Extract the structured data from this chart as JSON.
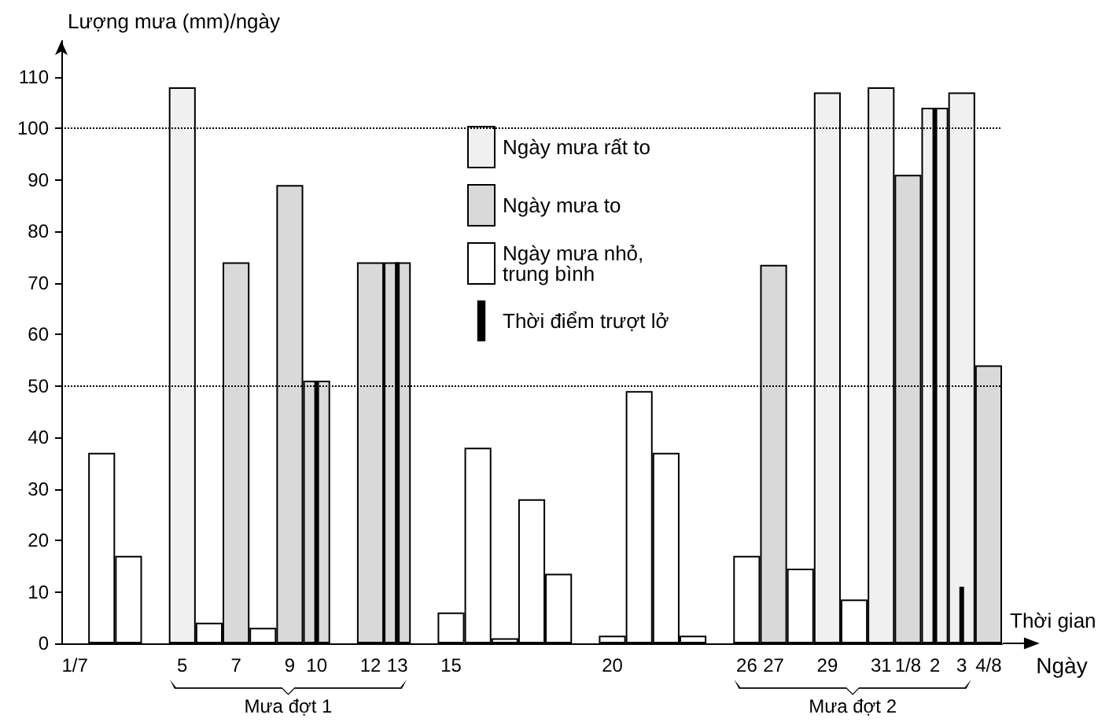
{
  "chart_data": {
    "type": "bar",
    "ylabel": "Lượng mưa (mm)/ngày",
    "xlabel": "Thời gian",
    "categories": [
      "1/7",
      null,
      null,
      null,
      "5",
      null,
      "7",
      null,
      "9",
      "10",
      null,
      "12",
      "13",
      null,
      "15",
      null,
      null,
      null,
      null,
      null,
      "20",
      null,
      null,
      null,
      null,
      "26",
      "27",
      null,
      "29",
      null,
      "31",
      "1/8",
      "2",
      "3",
      "4/8"
    ],
    "series": [
      {
        "name": "Ngày mưa rất to",
        "color": "#f0f0f0",
        "values": [
          null,
          null,
          null,
          null,
          108,
          null,
          null,
          null,
          null,
          null,
          null,
          null,
          null,
          null,
          null,
          null,
          null,
          null,
          null,
          null,
          null,
          null,
          null,
          null,
          null,
          null,
          null,
          null,
          107,
          null,
          108,
          null,
          104,
          107,
          null
        ]
      },
      {
        "name": "Ngày mưa to",
        "color": "#d9d9d9",
        "values": [
          null,
          null,
          null,
          null,
          null,
          null,
          74,
          null,
          89,
          51,
          null,
          74,
          74,
          null,
          null,
          null,
          null,
          null,
          null,
          null,
          null,
          null,
          null,
          null,
          null,
          null,
          73.5,
          null,
          null,
          null,
          null,
          91,
          null,
          null,
          54
        ]
      },
      {
        "name": "Ngày mưa nhỏ,\ntrung bình",
        "color": "#ffffff",
        "values": [
          null,
          37,
          17,
          null,
          null,
          4,
          null,
          3,
          null,
          null,
          null,
          null,
          null,
          null,
          6,
          38,
          1,
          28,
          13.5,
          null,
          1.5,
          49,
          37,
          1.5,
          null,
          17,
          null,
          14.5,
          null,
          8.5,
          null,
          null,
          null,
          null,
          null
        ]
      },
      {
        "name": "Thời điểm trượt lở",
        "color": "#000000",
        "values": [
          null,
          null,
          null,
          null,
          null,
          null,
          null,
          null,
          null,
          51,
          null,
          null,
          74,
          null,
          null,
          null,
          null,
          null,
          null,
          null,
          null,
          null,
          null,
          null,
          null,
          null,
          null,
          null,
          null,
          null,
          null,
          null,
          104,
          11,
          null
        ]
      }
    ],
    "ylim": [
      0,
      117
    ],
    "yticks": [
      0,
      10,
      20,
      30,
      40,
      50,
      60,
      70,
      80,
      90,
      100,
      110
    ],
    "ref_lines": [
      {
        "axis": "y",
        "value": 50,
        "line_style": "dotted"
      },
      {
        "axis": "y",
        "value": 100,
        "line_style": "dotted"
      }
    ],
    "annotations": [
      "Mưa đợt 1",
      "Mưa đợt 2",
      "Ngày"
    ],
    "legend": "top",
    "grid": false
  }
}
